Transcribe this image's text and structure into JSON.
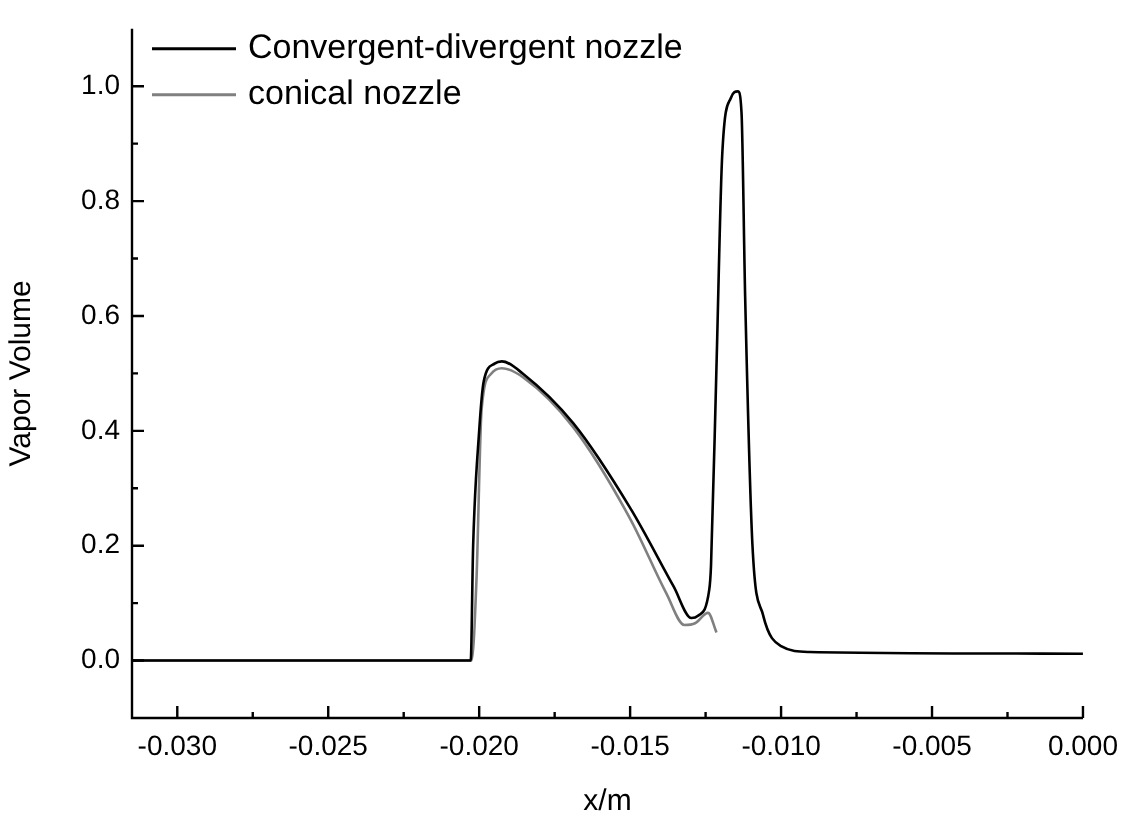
{
  "chart_data": {
    "type": "line",
    "xlabel": "x/m",
    "ylabel": "Vapor Volume",
    "legend": "top left",
    "grid": false,
    "marker": "none",
    "line_style": "solid",
    "xlim": [
      -0.0315,
      0.0
    ],
    "ylim": [
      -0.1,
      1.1
    ],
    "xticks": [
      {
        "value": -0.03,
        "label": "-0.030"
      },
      {
        "value": -0.0275,
        "label": null
      },
      {
        "value": -0.025,
        "label": "-0.025"
      },
      {
        "value": -0.0225,
        "label": null
      },
      {
        "value": -0.02,
        "label": "-0.020"
      },
      {
        "value": -0.0175,
        "label": null
      },
      {
        "value": -0.015,
        "label": "-0.015"
      },
      {
        "value": -0.0125,
        "label": null
      },
      {
        "value": -0.01,
        "label": "-0.010"
      },
      {
        "value": -0.0075,
        "label": null
      },
      {
        "value": -0.005,
        "label": "-0.005"
      },
      {
        "value": -0.0025,
        "label": null
      },
      {
        "value": 0.0,
        "label": "0.000"
      }
    ],
    "yticks": [
      {
        "value": 0,
        "label": "0.0"
      },
      {
        "value": 0.1,
        "label": null
      },
      {
        "value": 0.2,
        "label": "0.2"
      },
      {
        "value": 0.3,
        "label": null
      },
      {
        "value": 0.4,
        "label": "0.4"
      },
      {
        "value": 0.5,
        "label": null
      },
      {
        "value": 0.6,
        "label": "0.6"
      },
      {
        "value": 0.7,
        "label": null
      },
      {
        "value": 0.8,
        "label": "0.8"
      },
      {
        "value": 0.9,
        "label": null
      },
      {
        "value": 1.0,
        "label": "1.0"
      }
    ],
    "series": [
      {
        "name": "Convergent-divergent nozzle",
        "color": "#000000",
        "x": [
          -0.0315,
          -0.02028,
          -0.0202,
          -0.02,
          -0.01985,
          -0.01949,
          -0.01925,
          -0.01854,
          -0.01688,
          -0.01499,
          -0.01356,
          -0.01297,
          -0.01275,
          -0.01238,
          -0.01232,
          -0.01214,
          -0.01195,
          -0.01166,
          -0.01143,
          -0.01131,
          -0.01119,
          -0.01095,
          -0.0106,
          -0.01,
          -0.00906,
          0.0
        ],
        "values": [
          0.0,
          0.0,
          0.2,
          0.4,
          0.486,
          0.517,
          0.521,
          0.499,
          0.413,
          0.265,
          0.129,
          0.074,
          0.078,
          0.123,
          0.166,
          0.511,
          0.88,
          0.98,
          0.991,
          0.954,
          0.634,
          0.203,
          0.08,
          0.025,
          0.015,
          0.012
        ]
      },
      {
        "name": "conical nozzle",
        "color": "#808080",
        "x": [
          -0.0315,
          -0.02025,
          -0.02009,
          -0.01992,
          -0.01961,
          -0.01925,
          -0.01854,
          -0.01688,
          -0.01499,
          -0.0138,
          -0.0132,
          -0.01285,
          -0.01242,
          -0.01214
        ],
        "values": [
          0.0,
          0.0,
          0.14,
          0.437,
          0.499,
          0.509,
          0.493,
          0.406,
          0.246,
          0.117,
          0.062,
          0.065,
          0.083,
          0.049
        ]
      }
    ]
  }
}
